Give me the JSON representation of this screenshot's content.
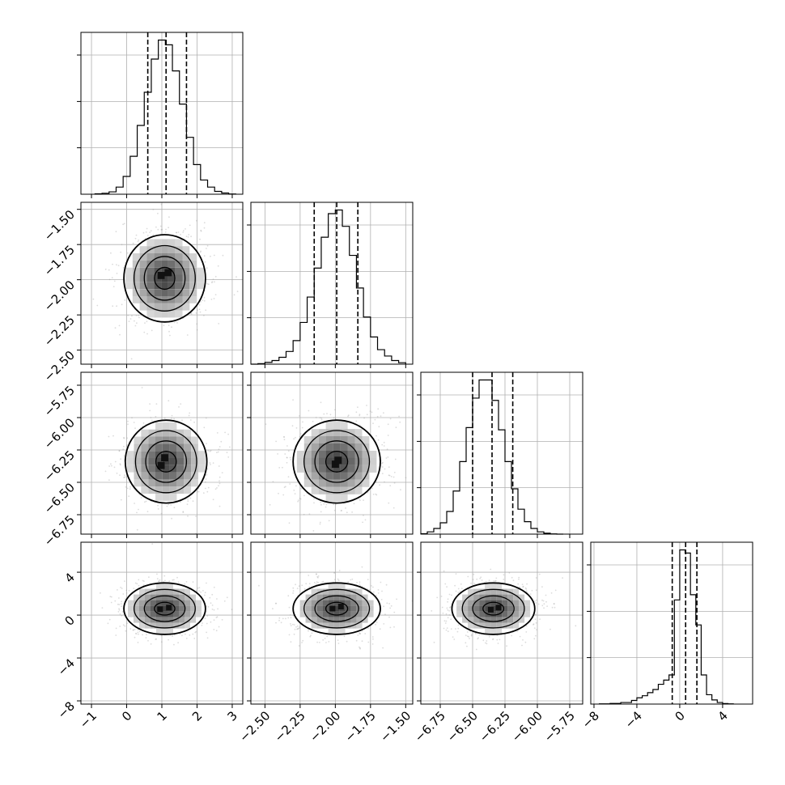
{
  "figure": {
    "grid_color": "#b0b0b0",
    "line_color": "#000000",
    "point_color": "#9a9a9a"
  },
  "chart_data": {
    "type": "corner",
    "grid": true,
    "n_params": 4,
    "params": [
      {
        "index": 0,
        "lim": [
          -1.3,
          3.3
        ],
        "ticks": [
          -1,
          0,
          1,
          2,
          3
        ],
        "tick_labels": [
          "−1",
          "0",
          "1",
          "2",
          "3"
        ],
        "hist_edges": [
          -0.9,
          -0.7,
          -0.5,
          -0.3,
          -0.1,
          0.1,
          0.3,
          0.5,
          0.7,
          0.9,
          1.1,
          1.3,
          1.5,
          1.7,
          1.9,
          2.1,
          2.3,
          2.5,
          2.7,
          2.9,
          3.1
        ],
        "hist_counts": [
          2,
          4,
          10,
          30,
          75,
          160,
          290,
          430,
          570,
          650,
          630,
          520,
          380,
          240,
          125,
          60,
          30,
          12,
          5,
          1
        ],
        "quantiles": [
          0.6,
          1.12,
          1.7
        ]
      },
      {
        "index": 1,
        "lim": [
          -2.6,
          -1.45
        ],
        "ticks": [
          -2.5,
          -2.25,
          -2.0,
          -1.75,
          -1.5
        ],
        "tick_labels": [
          "−2.50",
          "−2.25",
          "−2.00",
          "−1.75",
          "−1.50"
        ],
        "hist_edges": [
          -2.6,
          -2.55,
          -2.5,
          -2.45,
          -2.4,
          -2.35,
          -2.3,
          -2.25,
          -2.2,
          -2.15,
          -2.1,
          -2.05,
          -2.0,
          -1.95,
          -1.9,
          -1.85,
          -1.8,
          -1.75,
          -1.7,
          -1.65,
          -1.6,
          -1.55,
          -1.5
        ],
        "hist_counts": [
          0,
          3,
          10,
          20,
          38,
          70,
          130,
          230,
          370,
          530,
          700,
          830,
          850,
          760,
          600,
          420,
          260,
          150,
          80,
          45,
          20,
          8
        ],
        "quantiles": [
          -2.15,
          -1.99,
          -1.84
        ]
      },
      {
        "index": 2,
        "lim": [
          -6.9,
          -5.65
        ],
        "ticks": [
          -6.75,
          -6.5,
          -6.25,
          -6.0,
          -5.75
        ],
        "tick_labels": [
          "−6.75",
          "−6.50",
          "−6.25",
          "−6.00",
          "−5.75"
        ],
        "hist_edges": [
          -6.9,
          -6.85,
          -6.8,
          -6.75,
          -6.7,
          -6.65,
          -6.6,
          -6.55,
          -6.5,
          -6.45,
          -6.4,
          -6.35,
          -6.3,
          -6.25,
          -6.2,
          -6.15,
          -6.1,
          -6.05,
          -6.0,
          -5.95,
          -5.9,
          -5.85,
          -5.8
        ],
        "hist_counts": [
          2,
          10,
          25,
          50,
          100,
          190,
          320,
          470,
          600,
          680,
          680,
          590,
          460,
          320,
          200,
          110,
          55,
          25,
          10,
          4,
          1,
          0
        ],
        "quantiles": [
          -6.5,
          -6.35,
          -6.19
        ]
      },
      {
        "index": 3,
        "lim": [
          -8.3,
          6.8
        ],
        "ticks": [
          -8,
          -4,
          0,
          4
        ],
        "tick_labels": [
          "−8",
          "−4",
          "0",
          "4"
        ],
        "hist_edges": [
          -7.5,
          -6.5,
          -5.5,
          -4.5,
          -4.0,
          -3.5,
          -3.0,
          -2.5,
          -2.0,
          -1.5,
          -1.0,
          -0.5,
          0.0,
          0.5,
          1.0,
          1.5,
          2.0,
          2.5,
          3.0,
          3.5,
          4.0,
          4.5,
          5.0
        ],
        "hist_counts": [
          2,
          6,
          15,
          35,
          60,
          80,
          110,
          140,
          190,
          230,
          280,
          1000,
          1480,
          1450,
          1050,
          760,
          280,
          90,
          40,
          15,
          5,
          2
        ],
        "quantiles": [
          -0.7,
          0.55,
          1.6
        ]
      }
    ],
    "pairs": [
      {
        "row": 1,
        "col": 0,
        "center": [
          1.08,
          -1.99
        ],
        "sd": [
          0.58,
          0.155
        ],
        "levels": [
          0.5,
          1.0,
          1.5,
          2.0
        ],
        "peak_boxes": [
          [
            0.98,
            -1.97
          ],
          [
            1.18,
            -1.95
          ]
        ]
      },
      {
        "row": 2,
        "col": 0,
        "center": [
          1.12,
          -6.34
        ],
        "sd": [
          0.58,
          0.16
        ],
        "levels": [
          0.5,
          1.0,
          1.5,
          2.0
        ],
        "peak_boxes": [
          [
            0.98,
            -6.37
          ],
          [
            1.08,
            -6.31
          ]
        ]
      },
      {
        "row": 2,
        "col": 1,
        "center": [
          -1.99,
          -6.34
        ],
        "sd": [
          0.155,
          0.16
        ],
        "levels": [
          0.5,
          1.0,
          1.5,
          2.0
        ],
        "peak_boxes": [
          [
            -2.0,
            -6.36
          ],
          [
            -1.98,
            -6.33
          ]
        ]
      },
      {
        "row": 3,
        "col": 0,
        "center": [
          1.08,
          0.6
        ],
        "sd": [
          0.58,
          1.2
        ],
        "levels": [
          0.5,
          1.0,
          1.5,
          2.0
        ],
        "peak_boxes": [
          [
            0.95,
            0.55
          ],
          [
            1.2,
            0.7
          ]
        ]
      },
      {
        "row": 3,
        "col": 1,
        "center": [
          -1.99,
          0.6
        ],
        "sd": [
          0.155,
          1.2
        ],
        "levels": [
          0.5,
          1.0,
          1.5,
          2.0
        ],
        "peak_boxes": [
          [
            -2.02,
            0.6
          ],
          [
            -1.96,
            0.8
          ]
        ]
      },
      {
        "row": 3,
        "col": 2,
        "center": [
          -6.34,
          0.6
        ],
        "sd": [
          0.16,
          1.2
        ],
        "levels": [
          0.5,
          1.0,
          1.5,
          2.0
        ],
        "peak_boxes": [
          [
            -6.36,
            0.5
          ],
          [
            -6.3,
            0.7
          ]
        ]
      }
    ]
  }
}
